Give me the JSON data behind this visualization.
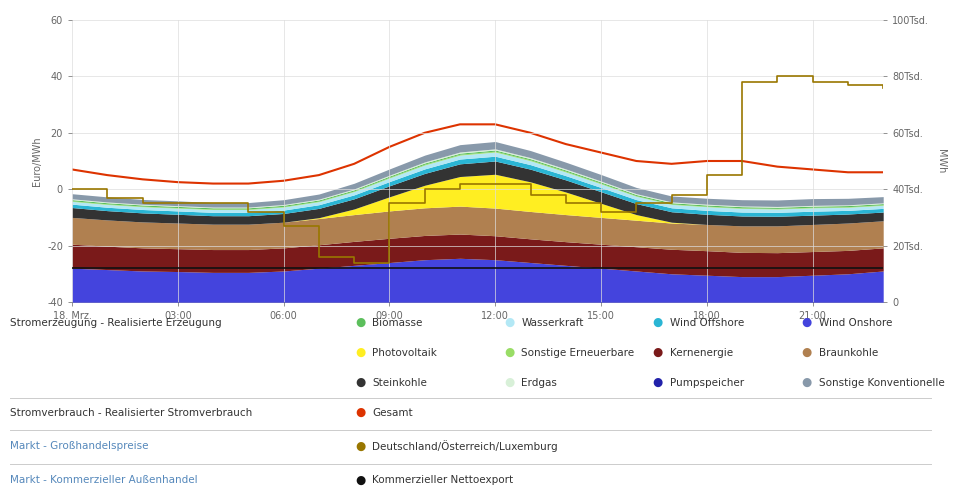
{
  "hours": [
    0,
    1,
    2,
    3,
    4,
    5,
    6,
    7,
    8,
    9,
    10,
    11,
    12,
    13,
    14,
    15,
    16,
    17,
    18,
    19,
    20,
    21,
    22,
    23
  ],
  "biomasse": [
    400,
    400,
    400,
    400,
    400,
    400,
    400,
    400,
    400,
    400,
    400,
    400,
    400,
    400,
    400,
    400,
    400,
    400,
    400,
    400,
    400,
    400,
    400,
    400
  ],
  "wasserkraft": [
    1000,
    1000,
    1000,
    1000,
    1000,
    1000,
    1100,
    1100,
    1200,
    1300,
    1400,
    1400,
    1500,
    1400,
    1300,
    1300,
    1200,
    1200,
    1300,
    1300,
    1200,
    1200,
    1100,
    1100
  ],
  "wind_offshore": [
    1200,
    1200,
    1200,
    1200,
    1200,
    1200,
    1200,
    1300,
    1400,
    1500,
    1600,
    1700,
    1700,
    1600,
    1500,
    1500,
    1400,
    1400,
    1400,
    1400,
    1400,
    1400,
    1300,
    1300
  ],
  "wind_onshore": [
    12000,
    11500,
    11000,
    10800,
    10500,
    10500,
    11000,
    12000,
    13000,
    14000,
    15000,
    15500,
    15000,
    14000,
    13000,
    12000,
    11000,
    10000,
    9500,
    9000,
    9000,
    9500,
    10000,
    11000
  ],
  "photovoltaik": [
    0,
    0,
    0,
    0,
    0,
    0,
    0,
    300,
    2000,
    5000,
    8000,
    10500,
    12000,
    10500,
    8000,
    5000,
    2000,
    300,
    0,
    0,
    0,
    0,
    0,
    0
  ],
  "sonstige_ern": [
    200,
    200,
    200,
    200,
    200,
    200,
    200,
    200,
    200,
    250,
    300,
    300,
    300,
    300,
    300,
    250,
    200,
    200,
    200,
    200,
    200,
    200,
    200,
    200
  ],
  "kernenergie": [
    8500,
    8300,
    8200,
    8100,
    8100,
    8100,
    8200,
    8300,
    8500,
    8600,
    8600,
    8600,
    8500,
    8400,
    8400,
    8500,
    8600,
    8700,
    8700,
    8600,
    8500,
    8400,
    8300,
    8200
  ],
  "braunkohle": [
    9500,
    9300,
    9200,
    9100,
    9000,
    9000,
    9100,
    9300,
    9500,
    9700,
    9800,
    9900,
    9800,
    9700,
    9600,
    9500,
    9400,
    9300,
    9300,
    9400,
    9500,
    9600,
    9700,
    9600
  ],
  "steinkohle": [
    3500,
    3300,
    3200,
    3100,
    3000,
    3000,
    3100,
    3300,
    3600,
    3900,
    4200,
    4500,
    4700,
    4500,
    4300,
    4100,
    3900,
    3700,
    3600,
    3500,
    3400,
    3300,
    3200,
    3100
  ],
  "erdgas": [
    300,
    280,
    270,
    270,
    270,
    270,
    280,
    290,
    310,
    330,
    380,
    400,
    410,
    400,
    380,
    350,
    320,
    300,
    290,
    280,
    280,
    270,
    270,
    270
  ],
  "pumpspeicher": [
    -800,
    -700,
    -700,
    -700,
    -700,
    -700,
    -700,
    -800,
    -1000,
    -1300,
    -1600,
    -1900,
    -2100,
    -1900,
    -1600,
    -1300,
    -1000,
    -800,
    -900,
    -1000,
    -1100,
    -1000,
    -900,
    -800
  ],
  "sonstige_konv": [
    1800,
    1800,
    1700,
    1700,
    1600,
    1600,
    1700,
    1800,
    2000,
    2200,
    2400,
    2600,
    2600,
    2500,
    2400,
    2300,
    2200,
    2100,
    2100,
    2200,
    2300,
    2400,
    2300,
    2200
  ],
  "gesamt_line": [
    47000,
    45000,
    43500,
    42500,
    42000,
    42000,
    43000,
    45000,
    49000,
    55000,
    60000,
    63000,
    63000,
    60000,
    56000,
    53000,
    50000,
    49000,
    50000,
    50000,
    48000,
    47000,
    46000,
    46000
  ],
  "price_line_hours": [
    0,
    1,
    2,
    3,
    4,
    5,
    6,
    7,
    8,
    9,
    10,
    11,
    12,
    13,
    14,
    15,
    16,
    17,
    18,
    19,
    20,
    21,
    22,
    23
  ],
  "price_line": [
    0,
    -3,
    -5,
    -5,
    -5,
    -8,
    -13,
    -24,
    -26,
    -5,
    0,
    2,
    2,
    -2,
    -5,
    -8,
    -5,
    -2,
    5,
    38,
    40,
    38,
    37,
    36
  ],
  "netexport_line": [
    -28,
    -28,
    -28,
    -28,
    -28,
    -28,
    -28,
    -28,
    -28,
    -28,
    -28,
    -28,
    -28,
    -28,
    -28,
    -28,
    -28,
    -28,
    -28,
    -28,
    -28,
    -28,
    -28,
    -28
  ],
  "colors": {
    "biomasse": "#5cbf5c",
    "wasserkraft": "#b3e8f5",
    "wind_offshore": "#2ab5d4",
    "wind_onshore": "#4444dd",
    "photovoltaik": "#ffee22",
    "sonstige_ern": "#99dd66",
    "kernenergie": "#7a1a1a",
    "braunkohle": "#b08050",
    "steinkohle": "#333333",
    "erdgas": "#d8f0d8",
    "pumpspeicher": "#2222aa",
    "sonstige_konv": "#8899aa",
    "gesamt": "#dd3300",
    "price": "#997700",
    "netexport": "#111111"
  },
  "ylim_left": [
    -40,
    60
  ],
  "ylim_right": [
    0,
    100000
  ],
  "yticks_left": [
    -40,
    -20,
    0,
    20,
    40,
    60
  ],
  "ytick_labels_right": [
    "0",
    "20Tsd.",
    "40Tsd.",
    "60Tsd.",
    "80Tsd.",
    "100Tsd."
  ],
  "xlabel_ticks": [
    "18. Mrz.",
    "03:00",
    "06:00",
    "09:00",
    "12:00",
    "15:00",
    "18:00",
    "21:00"
  ],
  "xlabel_tick_pos": [
    0,
    3,
    6,
    9,
    12,
    15,
    18,
    21
  ],
  "ylabel_left": "Euro/MWh",
  "ylabel_right": "MWh",
  "bg_color": "#ffffff",
  "plot_bg": "#f5f5f5",
  "grid_color": "#dddddd"
}
